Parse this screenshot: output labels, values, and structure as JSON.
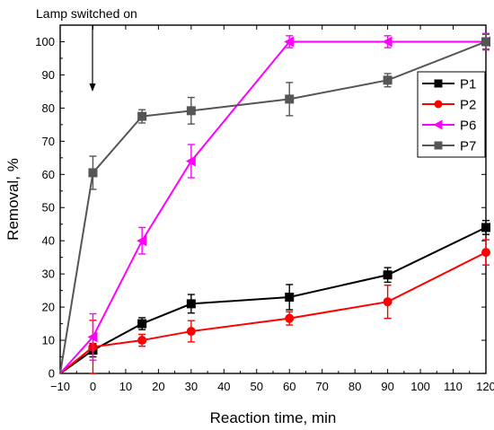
{
  "chart_data": {
    "type": "line",
    "xlabel": "Reaction time, min",
    "ylabel": "Removal, %",
    "xlim": [
      -10,
      120
    ],
    "ylim": [
      0,
      105
    ],
    "xticks": [
      -10,
      0,
      10,
      20,
      30,
      40,
      50,
      60,
      70,
      80,
      90,
      100,
      110,
      120
    ],
    "xtick_labels": [
      "−10",
      "0",
      "10",
      "20",
      "30",
      "40",
      "50",
      "60",
      "70",
      "80",
      "90",
      "100",
      "110",
      "120"
    ],
    "yticks": [
      0,
      10,
      20,
      30,
      40,
      50,
      60,
      70,
      80,
      90,
      100
    ],
    "yticks_labels": [
      "0",
      "10",
      "20",
      "30",
      "40",
      "50",
      "60",
      "70",
      "80",
      "90",
      "100"
    ],
    "grid": false,
    "legend_position": "top-right",
    "annotation": {
      "text": "Lamp switched on",
      "x": 0
    },
    "series": [
      {
        "name": "P1",
        "color": "#000000",
        "marker": "square",
        "x": [
          -10,
          0,
          15,
          30,
          60,
          90,
          120
        ],
        "y": [
          0,
          7,
          15,
          21,
          23,
          29.7,
          44
        ],
        "err": [
          0,
          2,
          1.8,
          2.8,
          3.8,
          2.2,
          2.1
        ]
      },
      {
        "name": "P2",
        "color": "#ff0000",
        "marker": "circle",
        "x": [
          -10,
          0,
          15,
          30,
          60,
          90,
          120
        ],
        "y": [
          0,
          8,
          10,
          12.7,
          16.6,
          21.6,
          36.5
        ],
        "err": [
          0,
          8,
          1.8,
          3.2,
          2,
          5,
          3.8
        ]
      },
      {
        "name": "P6",
        "color": "#ff00ff",
        "marker": "triangle-left",
        "x": [
          -10,
          0,
          15,
          30,
          60,
          90,
          120
        ],
        "y": [
          0,
          11,
          40,
          64,
          100,
          100,
          100
        ],
        "err": [
          0,
          7,
          4,
          5,
          1.8,
          1.8,
          2.5
        ]
      },
      {
        "name": "P7",
        "color": "#555555",
        "marker": "square",
        "x": [
          -10,
          0,
          15,
          30,
          60,
          90,
          120
        ],
        "y": [
          0,
          60.5,
          77.5,
          79.2,
          82.7,
          88.4,
          100
        ],
        "err": [
          0,
          5,
          2,
          4,
          5,
          2,
          2.2
        ]
      }
    ]
  }
}
